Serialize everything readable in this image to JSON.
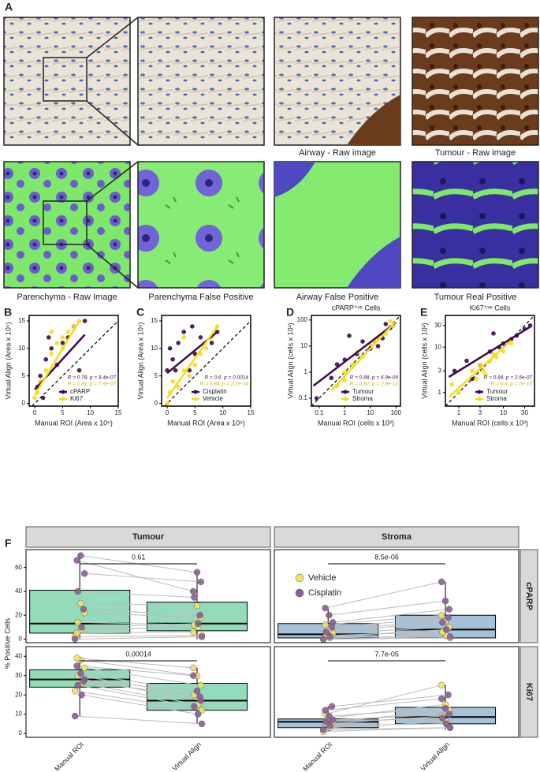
{
  "figure_a": {
    "label": "A",
    "captions": [
      "Airway - Raw image",
      "Tumour - Raw image",
      "Parenchyma - Raw Image",
      "Parenchyma False Positive",
      "Airway False Positive",
      "Tumour Real Positive"
    ]
  },
  "chart_data": [
    {
      "type": "scatter",
      "label": "B",
      "xlabel": "Manual ROI (Area x 10⁵)",
      "ylabel": "Virtual Align (Area x 10⁵)",
      "xlim": [
        -1,
        15
      ],
      "ylim": [
        -0.5,
        16
      ],
      "xticks": [
        0,
        5,
        10,
        15
      ],
      "yticks": [
        0,
        5,
        10,
        15
      ],
      "log": false,
      "series": [
        {
          "name": "cPARP",
          "color": "#3d0b4f",
          "stat": "R = 0.78, p = 8.4e-07",
          "x": [
            0.5,
            1,
            2,
            3,
            4,
            5,
            6,
            7,
            8,
            9,
            1.5,
            2.5
          ],
          "values": [
            3,
            5,
            8,
            10,
            7,
            11,
            12,
            14,
            6,
            15,
            1,
            12
          ],
          "fit": {
            "x": [
              0,
              9
            ],
            "values": [
              2.5,
              12.5
            ]
          }
        },
        {
          "name": "Ki67",
          "color": "#f2dd1c",
          "stat": "R = 0.81, p = 7.9e-07",
          "x": [
            0,
            0.5,
            1,
            2,
            3,
            4,
            5,
            6,
            7,
            8,
            3,
            5
          ],
          "values": [
            1,
            2,
            4,
            6,
            9,
            11,
            12,
            13,
            14,
            15,
            13,
            10
          ],
          "fit": {
            "x": [
              0,
              8
            ],
            "values": [
              1.5,
              15
            ]
          }
        }
      ]
    },
    {
      "type": "scatter",
      "label": "C",
      "xlabel": "Manual ROI (Area x 10⁵)",
      "ylabel": "Virtual Align (Area x 10⁵)",
      "xlim": [
        -1,
        15
      ],
      "ylim": [
        -0.5,
        16
      ],
      "xticks": [
        0,
        5,
        10,
        15
      ],
      "yticks": [
        0,
        5,
        10,
        15
      ],
      "log": false,
      "series": [
        {
          "name": "Cisplatin",
          "color": "#3d0b4f",
          "stat": "R = 0.6, p = 0.0014",
          "x": [
            0,
            0.5,
            1,
            2,
            3,
            4,
            5,
            6,
            8,
            9,
            1.5,
            4.5
          ],
          "values": [
            6,
            10,
            8,
            11,
            13,
            6,
            9,
            12,
            11,
            13,
            6,
            14
          ],
          "fit": {
            "x": [
              0,
              9
            ],
            "values": [
              5.5,
              13
            ]
          }
        },
        {
          "name": "Vehicle",
          "color": "#f2dd1c",
          "stat": "R = 0.84, p = 2.1e-14",
          "x": [
            0,
            0.5,
            1,
            2,
            3,
            4,
            5,
            6,
            7,
            8,
            9,
            3
          ],
          "values": [
            0,
            2,
            4,
            3,
            6,
            5,
            7,
            9,
            10,
            12,
            14,
            12
          ],
          "fit": {
            "x": [
              0,
              9
            ],
            "values": [
              1,
              14
            ]
          }
        }
      ]
    },
    {
      "type": "scatter",
      "label": "D",
      "title": "cPARP⁺ᵛᵉ Cells",
      "xlabel": "Manual ROI (cells x 10²)",
      "ylabel": "Virtual Align (cells x 10²)",
      "xlim": [
        0.05,
        150
      ],
      "ylim": [
        0.05,
        150
      ],
      "xticks": [
        0.1,
        1,
        10,
        100
      ],
      "yticks": [
        0.1,
        1,
        10,
        100
      ],
      "log": true,
      "series": [
        {
          "name": "Tumour",
          "color": "#3d0b4f",
          "stat": "R = 0.88, p = 6.9e-09",
          "x": [
            0.08,
            0.3,
            1,
            3,
            10,
            30,
            60,
            0.5,
            5,
            20,
            1.5,
            40
          ],
          "values": [
            0.1,
            0.6,
            3,
            5,
            8,
            20,
            50,
            2,
            15,
            10,
            25,
            70
          ],
          "fit": {
            "x": [
              0.06,
              100
            ],
            "values": [
              0.3,
              80
            ]
          }
        },
        {
          "name": "Stroma",
          "color": "#f2dd1c",
          "stat": "R = 0.82, p = 2.9e-12",
          "x": [
            0.5,
            1,
            2,
            5,
            10,
            20,
            40,
            80,
            1,
            3,
            15,
            60
          ],
          "values": [
            0.3,
            1,
            2,
            4,
            12,
            20,
            30,
            60,
            0.5,
            6,
            15,
            90
          ],
          "fit": {
            "x": [
              0.3,
              100
            ],
            "values": [
              0.2,
              90
            ]
          }
        }
      ]
    },
    {
      "type": "scatter",
      "label": "E",
      "title": "Ki67⁺ᵛᵉ Cells",
      "xlabel": "Manual ROI (cells x 10²)",
      "ylabel": "Virtual Align (cells x 10²)",
      "xlim": [
        0.5,
        50
      ],
      "ylim": [
        0.5,
        50
      ],
      "xticks": [
        1,
        3,
        10,
        30
      ],
      "yticks": [
        1,
        3,
        10,
        30
      ],
      "log": true,
      "series": [
        {
          "name": "Tumour",
          "color": "#3d0b4f",
          "stat": "R = 0.84, p = 2.6e-07",
          "x": [
            0.8,
            1.5,
            3,
            5,
            8,
            10,
            15,
            20,
            30,
            40,
            2,
            6
          ],
          "values": [
            3,
            5,
            4,
            8,
            10,
            12,
            15,
            18,
            25,
            30,
            2,
            20
          ],
          "fit": {
            "x": [
              0.6,
              40
            ],
            "values": [
              2.2,
              28
            ]
          }
        },
        {
          "name": "Stroma",
          "color": "#f2dd1c",
          "stat": "R = 0.8, p = 2e-10",
          "x": [
            0.7,
            1,
            2,
            3,
            4,
            5,
            7,
            10,
            15,
            3.5,
            2.5,
            6
          ],
          "values": [
            1.5,
            1,
            3,
            4,
            2.5,
            5,
            6,
            8,
            12,
            3,
            2,
            7
          ],
          "fit": {
            "x": [
              0.6,
              15
            ],
            "values": [
              0.8,
              14
            ]
          }
        }
      ]
    },
    {
      "type": "box",
      "label": "F",
      "ylabel": "% Positive Cells",
      "categories": [
        "Manual ROI",
        "Virtual Align"
      ],
      "columns": [
        {
          "name": "Tumour",
          "color": "#93dbbb"
        },
        {
          "name": "Stroma",
          "color": "#a6c2d8"
        }
      ],
      "rows": [
        {
          "name": "cPARP",
          "ylim": [
            -3,
            75
          ],
          "yticks": [
            0,
            20,
            40,
            60
          ]
        },
        {
          "name": "Ki67",
          "ylim": [
            -2,
            45
          ],
          "yticks": [
            0,
            10,
            20,
            30,
            40
          ]
        }
      ],
      "series": [
        {
          "name": "Vehicle",
          "color": "#f0e266"
        },
        {
          "name": "Cisplatin",
          "color": "#8b5f98"
        }
      ],
      "panels": [
        [
          {
            "p_label": "0.61",
            "boxes": [
              {
                "whisker_low": 0,
                "q1": 5,
                "median": 13,
                "q3": 41,
                "whisker_high": 70
              },
              {
                "whisker_low": 0,
                "q1": 7,
                "median": 13,
                "q3": 31,
                "whisker_high": 56
              }
            ],
            "series": [
              {
                "manual": [
                  2,
                  8,
                  14,
                  22,
                  30,
                  5
                ],
                "virtual": [
                  3,
                  10,
                  12,
                  18,
                  28,
                  6
                ]
              },
              {
                "manual": [
                  0,
                  10,
                  40,
                  55,
                  70,
                  66,
                  25
                ],
                "virtual": [
                  2,
                  13,
                  35,
                  48,
                  56,
                  40,
                  20
                ]
              }
            ]
          },
          {
            "p_label": "8.5e-06",
            "boxes": [
              {
                "whisker_low": 0,
                "q1": 1,
                "median": 4,
                "q3": 13,
                "whisker_high": 26
              },
              {
                "whisker_low": 0,
                "q1": 1,
                "median": 8,
                "q3": 20,
                "whisker_high": 48
              }
            ],
            "series": [
              {
                "manual": [
                  0,
                  1,
                  3,
                  5,
                  8,
                  12
                ],
                "virtual": [
                  1,
                  3,
                  6,
                  10,
                  15,
                  20
                ]
              },
              {
                "manual": [
                  0,
                  2,
                  6,
                  14,
                  20,
                  26,
                  10
                ],
                "virtual": [
                  2,
                  8,
                  14,
                  25,
                  32,
                  48,
                  18
                ]
              }
            ]
          }
        ],
        [
          {
            "p_label": "0.00014",
            "boxes": [
              {
                "whisker_low": 9,
                "q1": 24,
                "median": 28,
                "q3": 33,
                "whisker_high": 39
              },
              {
                "whisker_low": 5,
                "q1": 12,
                "median": 17,
                "q3": 26,
                "whisker_high": 34
              }
            ],
            "series": [
              {
                "manual": [
                  22,
                  26,
                  30,
                  34,
                  38,
                  39
                ],
                "virtual": [
                  12,
                  15,
                  20,
                  25,
                  30,
                  34
                ]
              },
              {
                "manual": [
                  9,
                  20,
                  25,
                  28,
                  31,
                  35,
                  27
                ],
                "virtual": [
                  5,
                  10,
                  14,
                  17,
                  22,
                  30,
                  19
                ]
              }
            ]
          },
          {
            "p_label": "7.7e-05",
            "boxes": [
              {
                "whisker_low": 1,
                "q1": 3,
                "median": 6,
                "q3": 7.5,
                "whisker_high": 14
              },
              {
                "whisker_low": 2,
                "q1": 5,
                "median": 8.5,
                "q3": 13.5,
                "whisker_high": 25
              }
            ],
            "series": [
              {
                "manual": [
                  1,
                  3,
                  5,
                  6,
                  8,
                  10
                ],
                "virtual": [
                  3,
                  6,
                  9,
                  12,
                  15,
                  25
                ]
              },
              {
                "manual": [
                  2,
                  4,
                  6,
                  7,
                  9,
                  12,
                  14
                ],
                "virtual": [
                  3,
                  5,
                  8,
                  10,
                  13,
                  18,
                  20
                ]
              }
            ]
          }
        ]
      ]
    }
  ]
}
